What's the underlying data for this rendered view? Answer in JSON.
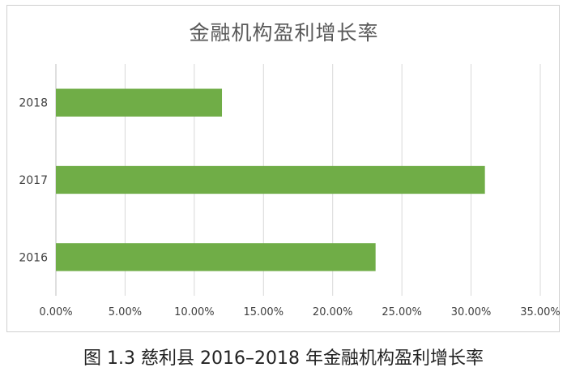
{
  "figure_caption": "图 1.3   慈利县 2016–2018 年金融机构盈利增长率",
  "chart_data": {
    "type": "bar",
    "orientation": "horizontal",
    "title": "金融机构盈利增长率",
    "categories": [
      "2016",
      "2017",
      "2018"
    ],
    "values": [
      0.231,
      0.31,
      0.12
    ],
    "xlim": [
      0,
      0.35
    ],
    "x_ticks": [
      "0.00%",
      "5.00%",
      "10.00%",
      "15.00%",
      "20.00%",
      "25.00%",
      "30.00%",
      "35.00%"
    ],
    "grid": true,
    "bar_color": "#70AD47"
  }
}
